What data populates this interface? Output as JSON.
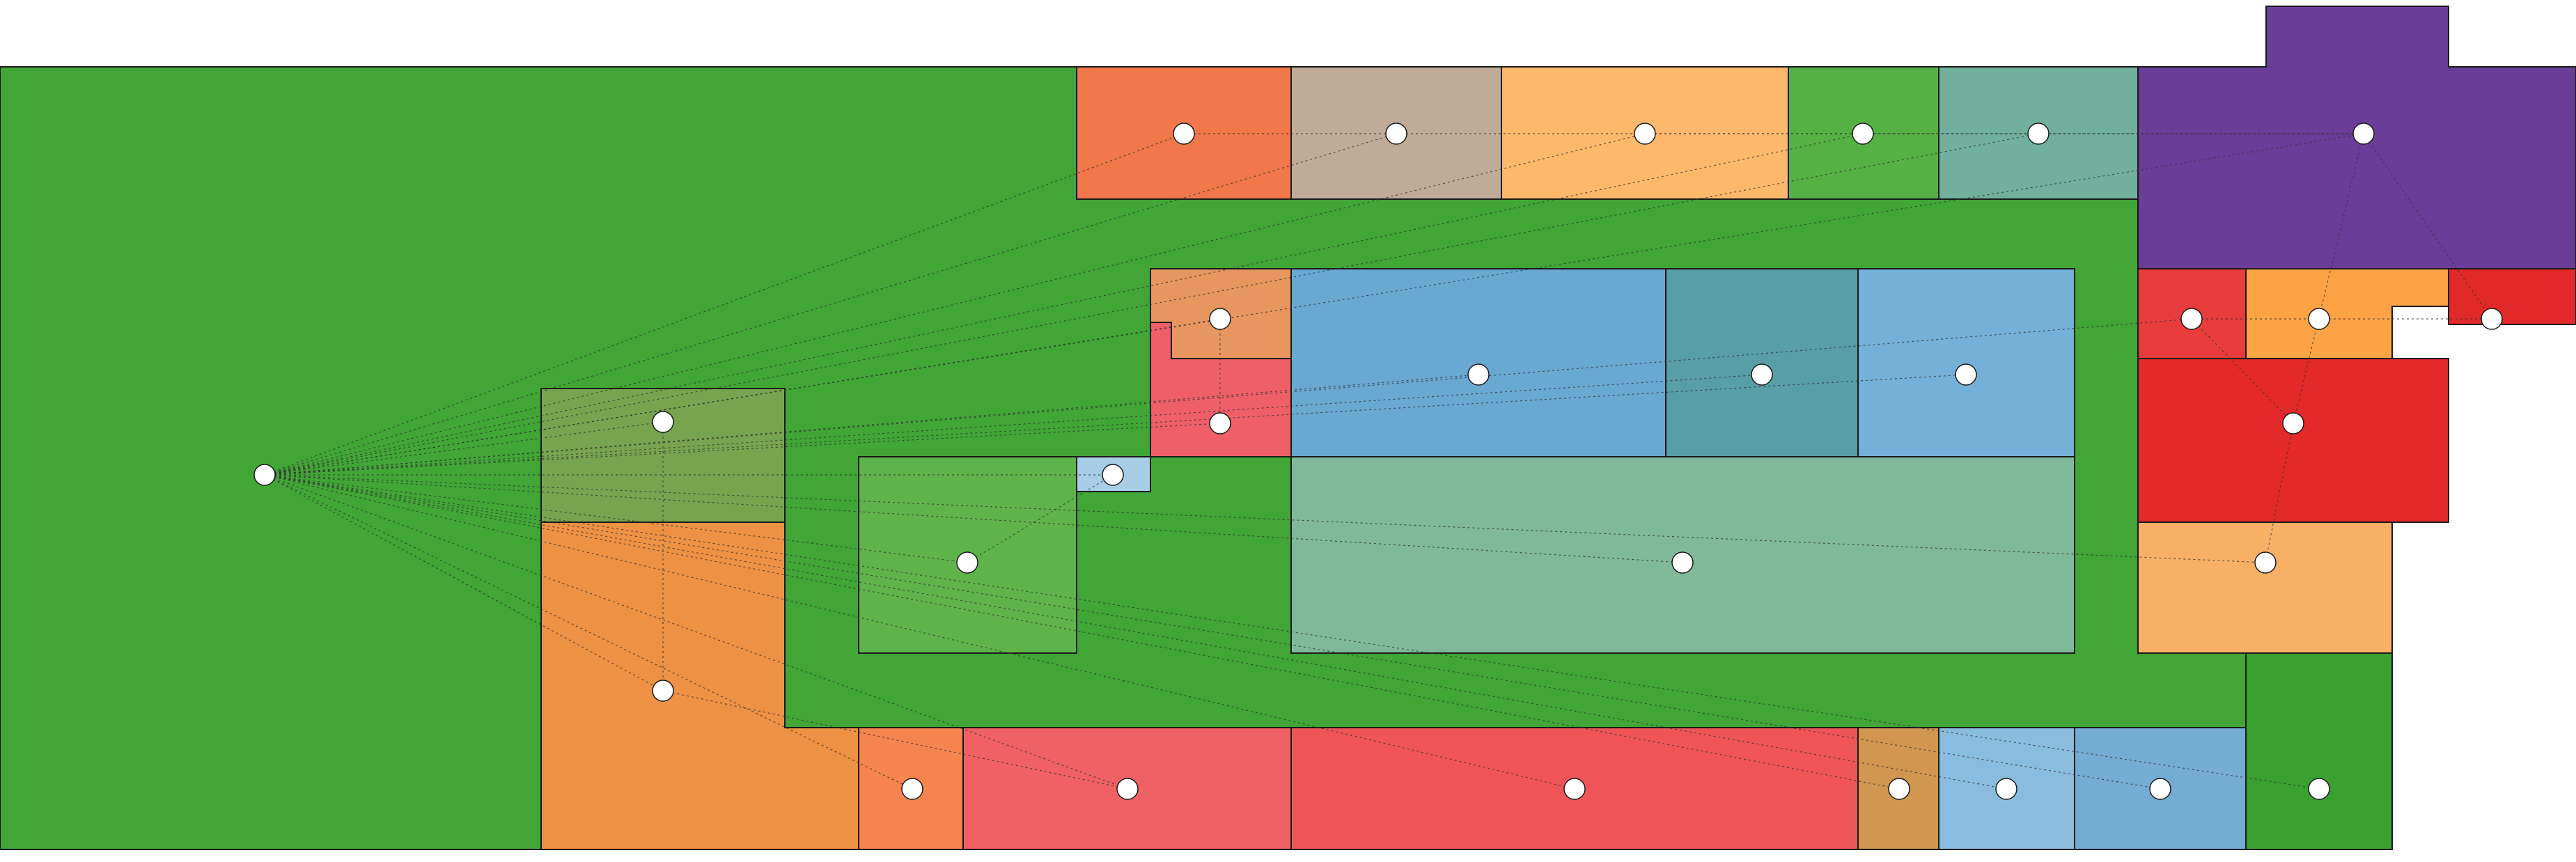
{
  "diagram": {
    "kind": "floor-plan room adjacency",
    "background": "#ffffff",
    "outline_color": "#1a1a1a",
    "edge_color": "#333333",
    "node_fill": "#ffffff",
    "rooms": [
      {
        "id": "main-corridor",
        "color": "#41a636"
      },
      {
        "id": "top-room-1",
        "color": "#f0784a"
      },
      {
        "id": "top-room-2",
        "color": "#bfab98"
      },
      {
        "id": "top-room-3",
        "color": "#fdb86b"
      },
      {
        "id": "top-room-4",
        "color": "#56b144"
      },
      {
        "id": "top-room-5",
        "color": "#70b09d"
      },
      {
        "id": "top-right-room",
        "color": "#6a3d99"
      },
      {
        "id": "olive-room",
        "color": "#78a44f"
      },
      {
        "id": "orange-room",
        "color": "#ed9145"
      },
      {
        "id": "green-room",
        "color": "#5fb34b"
      },
      {
        "id": "light-blue-room",
        "color": "#a7cde7"
      },
      {
        "id": "peach-room",
        "color": "#e8965f"
      },
      {
        "id": "pink-room",
        "color": "#ef5f68"
      },
      {
        "id": "blue-room-1",
        "color": "#69a8d1"
      },
      {
        "id": "teal-room",
        "color": "#579ea7"
      },
      {
        "id": "blue-room-2",
        "color": "#74b0d7"
      },
      {
        "id": "sage-room",
        "color": "#7fb99a"
      },
      {
        "id": "red-room-1",
        "color": "#e83b3c"
      },
      {
        "id": "orange-room-2",
        "color": "#fca346"
      },
      {
        "id": "red-room-2",
        "color": "#e22929"
      },
      {
        "id": "red-room-3",
        "color": "#e4292b"
      },
      {
        "id": "light-orange-room",
        "color": "#f8b067"
      },
      {
        "id": "bottom-room-1",
        "color": "#f6844f"
      },
      {
        "id": "bottom-room-2",
        "color": "#ef6164"
      },
      {
        "id": "bottom-room-3",
        "color": "#ef5557"
      },
      {
        "id": "bottom-room-4",
        "color": "#d19650"
      },
      {
        "id": "bottom-room-5",
        "color": "#8abcdf"
      },
      {
        "id": "bottom-room-6",
        "color": "#75acd4"
      },
      {
        "id": "green-room-2",
        "color": "#3aa02f"
      }
    ],
    "edges": [
      [
        "main-corridor",
        "top-room-1"
      ],
      [
        "main-corridor",
        "top-room-2"
      ],
      [
        "main-corridor",
        "top-room-3"
      ],
      [
        "main-corridor",
        "top-room-4"
      ],
      [
        "main-corridor",
        "top-room-5"
      ],
      [
        "main-corridor",
        "top-right-room"
      ],
      [
        "main-corridor",
        "olive-room"
      ],
      [
        "main-corridor",
        "orange-room"
      ],
      [
        "main-corridor",
        "peach-room"
      ],
      [
        "main-corridor",
        "pink-room"
      ],
      [
        "main-corridor",
        "blue-room-1"
      ],
      [
        "main-corridor",
        "teal-room"
      ],
      [
        "main-corridor",
        "blue-room-2"
      ],
      [
        "main-corridor",
        "sage-room"
      ],
      [
        "main-corridor",
        "red-room-1"
      ],
      [
        "main-corridor",
        "light-orange-room"
      ],
      [
        "main-corridor",
        "bottom-room-1"
      ],
      [
        "main-corridor",
        "bottom-room-2"
      ],
      [
        "main-corridor",
        "bottom-room-3"
      ],
      [
        "main-corridor",
        "bottom-room-4"
      ],
      [
        "main-corridor",
        "bottom-room-5"
      ],
      [
        "main-corridor",
        "bottom-room-6"
      ],
      [
        "main-corridor",
        "green-room-2"
      ],
      [
        "main-corridor",
        "light-blue-room"
      ],
      [
        "main-corridor",
        "green-room"
      ],
      [
        "top-room-1",
        "top-room-2"
      ],
      [
        "top-room-2",
        "top-room-3"
      ],
      [
        "top-room-3",
        "top-room-4"
      ],
      [
        "top-room-4",
        "top-room-5"
      ],
      [
        "top-room-5",
        "top-right-room"
      ],
      [
        "top-room-3",
        "top-right-room"
      ],
      [
        "top-right-room",
        "red-room-2"
      ],
      [
        "top-right-room",
        "red-room-3"
      ],
      [
        "red-room-1",
        "orange-room-2"
      ],
      [
        "red-room-1",
        "red-room-3"
      ],
      [
        "orange-room-2",
        "red-room-2"
      ],
      [
        "red-room-3",
        "light-orange-room"
      ],
      [
        "peach-room",
        "pink-room"
      ],
      [
        "green-room",
        "light-blue-room"
      ],
      [
        "olive-room",
        "orange-room"
      ],
      [
        "orange-room",
        "bottom-room-2"
      ]
    ]
  }
}
